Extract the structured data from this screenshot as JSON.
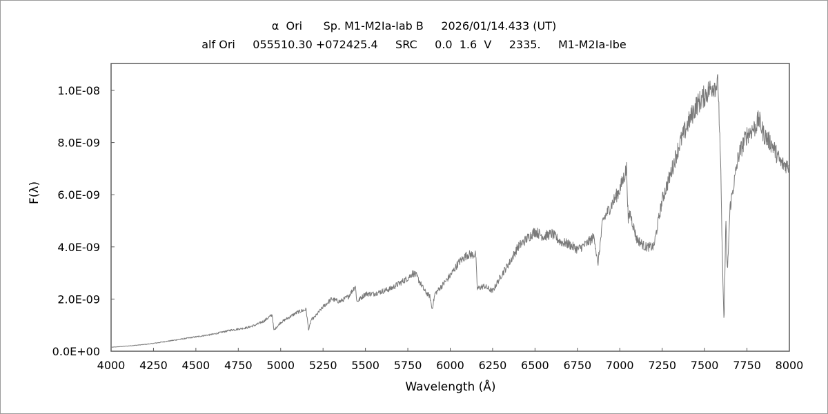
{
  "chart_data": {
    "type": "line",
    "title": "α  Ori      Sp. M1-M2Ia-Iab B     2026/01/14.433 (UT)",
    "subtitle": "alf Ori     055510.30 +072425.4     SRC     0.0  1.6  V     2335.     M1-M2Ia-Ibe",
    "xlabel": "Wavelength (Å)",
    "ylabel": "F(λ)",
    "xlim": [
      4000,
      8000
    ],
    "ylim": [
      0,
      1.1e-08
    ],
    "x_ticks": [
      4000,
      4250,
      4500,
      4750,
      5000,
      5250,
      5500,
      5750,
      6000,
      6250,
      6500,
      6750,
      7000,
      7250,
      7500,
      7750,
      8000
    ],
    "x_tick_labels": [
      "4000",
      "4250",
      "4500",
      "4750",
      "5000",
      "5250",
      "5500",
      "5750",
      "6000",
      "6250",
      "6500",
      "6750",
      "7000",
      "7250",
      "7500",
      "7750",
      "8000"
    ],
    "y_ticks": [
      0,
      2e-09,
      4e-09,
      6e-09,
      8e-09,
      1e-08
    ],
    "y_tick_labels": [
      "0.0E+00",
      "2.0E-09",
      "4.0E-09",
      "6.0E-09",
      "8.0E-09",
      "1.0E-08"
    ],
    "grid": false,
    "line_color": "#7a7a7a",
    "series": [
      {
        "x": [
          4000,
          4100,
          4200,
          4250,
          4300,
          4400,
          4500,
          4600,
          4700,
          4800,
          4850,
          4900,
          4950,
          4960,
          5000,
          5050,
          5100,
          5150,
          5165,
          5180,
          5200,
          5250,
          5300,
          5350,
          5400,
          5440,
          5450,
          5500,
          5550,
          5600,
          5650,
          5700,
          5750,
          5780,
          5800,
          5850,
          5880,
          5893,
          5910,
          5950,
          6000,
          6050,
          6100,
          6150,
          6160,
          6200,
          6250,
          6300,
          6350,
          6400,
          6450,
          6500,
          6550,
          6600,
          6650,
          6700,
          6750,
          6800,
          6850,
          6870,
          6900,
          6950,
          7000,
          7040,
          7050,
          7060,
          7100,
          7150,
          7200,
          7250,
          7300,
          7350,
          7400,
          7450,
          7500,
          7550,
          7580,
          7595,
          7605,
          7615,
          7625,
          7635,
          7650,
          7700,
          7750,
          7800,
          7820,
          7850,
          7900,
          7950,
          8000
        ],
        "y": [
          1.5e-10,
          2e-10,
          2.6e-10,
          3e-10,
          3.5e-10,
          4.5e-10,
          5.5e-10,
          6.5e-10,
          8e-10,
          9e-10,
          1e-09,
          1.15e-09,
          1.4e-09,
          8e-10,
          1.1e-09,
          1.3e-09,
          1.5e-09,
          1.6e-09,
          8e-10,
          1.2e-09,
          1.3e-09,
          1.7e-09,
          2e-09,
          1.9e-09,
          2.1e-09,
          2.5e-09,
          1.9e-09,
          2.2e-09,
          2.2e-09,
          2.3e-09,
          2.4e-09,
          2.6e-09,
          2.8e-09,
          3e-09,
          2.9e-09,
          2.3e-09,
          2.1e-09,
          1.6e-09,
          2.2e-09,
          2.5e-09,
          2.9e-09,
          3.4e-09,
          3.7e-09,
          3.7e-09,
          2.4e-09,
          2.5e-09,
          2.3e-09,
          2.9e-09,
          3.4e-09,
          4e-09,
          4.3e-09,
          4.6e-09,
          4.4e-09,
          4.5e-09,
          4.2e-09,
          4.1e-09,
          3.9e-09,
          4.1e-09,
          4.4e-09,
          3.3e-09,
          5e-09,
          5.6e-09,
          6.2e-09,
          7e-09,
          5e-09,
          5.3e-09,
          4.3e-09,
          4e-09,
          4e-09,
          5.8e-09,
          6.8e-09,
          7.9e-09,
          8.7e-09,
          9.4e-09,
          9.8e-09,
          1.02e-08,
          1.02e-08,
          7e-09,
          3.5e-09,
          1e-09,
          5e-09,
          3e-09,
          5.5e-09,
          7.5e-09,
          8.3e-09,
          8.6e-09,
          8.9e-09,
          8.3e-09,
          7.9e-09,
          7.2e-09,
          7.1e-09
        ]
      }
    ]
  }
}
